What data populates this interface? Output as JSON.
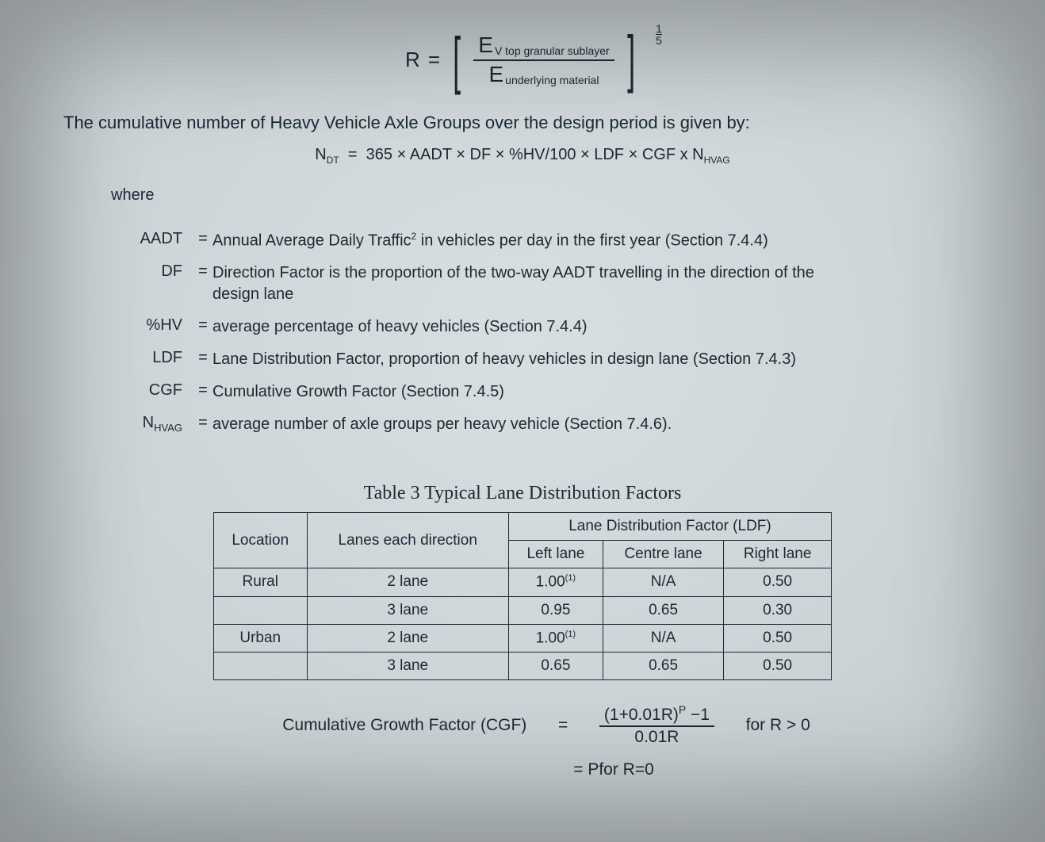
{
  "formula_R": {
    "lhs": "R",
    "eq": "=",
    "numerator_E": "E",
    "numerator_sub": "V top granular sublayer",
    "denominator_E": "E",
    "denominator_sub": "underlying material",
    "exponent_num": "1",
    "exponent_den": "5"
  },
  "intro_text": "The cumulative number of Heavy Vehicle Axle Groups over the design period is given by:",
  "formula_N": {
    "lhs_sym": "N",
    "lhs_sub": "DT",
    "eq": "=",
    "rhs_a": "365 × AADT × DF × %HV/100 × LDF × CGF x N",
    "rhs_sub": "HVAG"
  },
  "where_label": "where",
  "defs": [
    {
      "term": "AADT",
      "eq": "=",
      "desc_a": "Annual Average Daily Traffic",
      "sup": "2",
      "desc_b": " in vehicles per day in the first year (Section 7.4.4)"
    },
    {
      "term": "DF",
      "eq": "=",
      "desc_a": "Direction Factor is the proportion of the two-way AADT travelling in the direction of the design lane",
      "sup": "",
      "desc_b": ""
    },
    {
      "term": "%HV",
      "eq": "=",
      "desc_a": "average percentage of heavy vehicles (Section 7.4.4)",
      "sup": "",
      "desc_b": ""
    },
    {
      "term": "LDF",
      "eq": "=",
      "desc_a": "Lane Distribution Factor, proportion of heavy vehicles in design lane (Section 7.4.3)",
      "sup": "",
      "desc_b": ""
    },
    {
      "term": "CGF",
      "eq": "=",
      "desc_a": "Cumulative Growth Factor (Section 7.4.5)",
      "sup": "",
      "desc_b": ""
    },
    {
      "term": "N",
      "term_sub": "HVAG",
      "eq": "=",
      "desc_a": "average number of axle groups per heavy vehicle (Section 7.4.6).",
      "sup": "",
      "desc_b": ""
    }
  ],
  "table": {
    "title": "Table 3 Typical Lane Distribution Factors",
    "header_group": "Lane Distribution Factor (LDF)",
    "col_location": "Location",
    "col_lanes": "Lanes each direction",
    "col_left": "Left lane",
    "col_centre": "Centre lane",
    "col_right": "Right lane",
    "rows": [
      {
        "loc": "Rural",
        "lanes": "2 lane",
        "left": "1.00",
        "left_note": "(1)",
        "centre": "N/A",
        "right": "0.50"
      },
      {
        "loc": "",
        "lanes": "3 lane",
        "left": "0.95",
        "left_note": "",
        "centre": "0.65",
        "right": "0.30"
      },
      {
        "loc": "Urban",
        "lanes": "2 lane",
        "left": "1.00",
        "left_note": "(1)",
        "centre": "N/A",
        "right": "0.50"
      },
      {
        "loc": "",
        "lanes": "3 lane",
        "left": "0.65",
        "left_note": "",
        "centre": "0.65",
        "right": "0.50"
      }
    ]
  },
  "cgf": {
    "label": "Cumulative Growth Factor (CGF)",
    "eq": "=",
    "num_a": "(1+0.01R)",
    "num_exp": "P",
    "num_b": " −1",
    "den": "0.01R",
    "cond1": "for R > 0",
    "line2": "= Pfor R=0"
  },
  "colors": {
    "text": "#1a2a33",
    "bg_center": "#d8dfe1",
    "bg_edge": "#b2bcc0",
    "border": "#1a2a33"
  },
  "typography": {
    "body_font": "Arial",
    "title_font": "Times New Roman",
    "body_size_pt": 15,
    "title_size_pt": 18
  }
}
